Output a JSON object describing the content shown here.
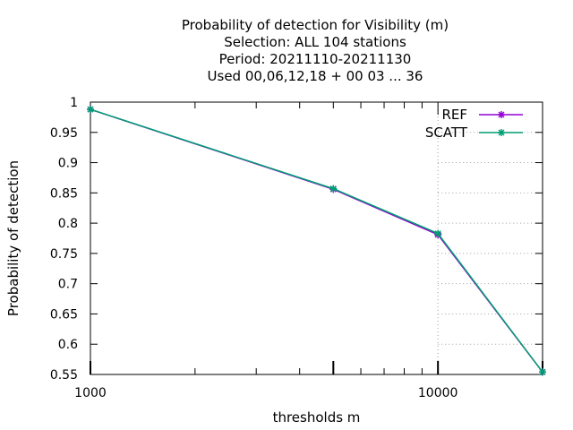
{
  "chart_data": {
    "type": "line",
    "title": [
      "Probability of detection  for Visibility (m)",
      "Selection: ALL    104 stations",
      "Period: 20211110-20211130",
      "Used  00,06,12,18 + 00 03 ... 36"
    ],
    "xlabel": "thresholds m",
    "ylabel": "Probability of detection",
    "x_scale": "log",
    "xlim": [
      1000,
      20000
    ],
    "ylim": [
      0.55,
      1.0
    ],
    "x_ticks": [
      1000,
      10000
    ],
    "x_tick_labels": [
      "1000",
      "10000"
    ],
    "y_ticks": [
      0.55,
      0.6,
      0.65,
      0.7,
      0.75,
      0.8,
      0.85,
      0.9,
      0.95,
      1.0
    ],
    "y_tick_labels": [
      "0.55",
      "0.6",
      "0.65",
      "0.7",
      "0.75",
      "0.8",
      "0.85",
      "0.9",
      "0.95",
      "1"
    ],
    "grid": "partial",
    "legend_position": "top-right",
    "series": [
      {
        "name": "REF",
        "color": "#9400d3",
        "x": [
          1000,
          5000,
          10000,
          20000
        ],
        "y": [
          0.988,
          0.856,
          0.781,
          0.554
        ]
      },
      {
        "name": "SCATT",
        "color": "#009e73",
        "x": [
          1000,
          5000,
          10000,
          20000
        ],
        "y": [
          0.988,
          0.857,
          0.783,
          0.554
        ]
      }
    ]
  }
}
